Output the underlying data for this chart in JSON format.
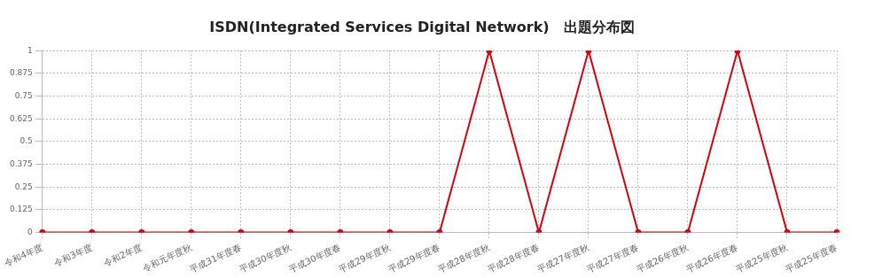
{
  "chart_data": {
    "type": "line",
    "title": "ISDN(Integrated Services Digital Network)　出題分布図",
    "categories": [
      "令和4年度",
      "令和3年度",
      "令和2年度",
      "令和元年度秋",
      "平成31年度春",
      "平成30年度秋",
      "平成30年度春",
      "平成29年度秋",
      "平成29年度春",
      "平成28年度秋",
      "平成28年度春",
      "平成27年度秋",
      "平成27年度春",
      "平成26年度秋",
      "平成26年度春",
      "平成25年度秋",
      "平成25年度春"
    ],
    "series": [
      {
        "color": "#d7000f",
        "values": [
          0,
          0,
          0,
          0,
          0,
          0,
          0,
          0,
          0,
          1,
          0,
          1,
          0,
          0,
          1,
          0,
          0
        ]
      }
    ],
    "ylim": [
      0,
      1
    ],
    "yticks": [
      0,
      0.125,
      0.25,
      0.375,
      0.5,
      0.625,
      0.75,
      0.875,
      1
    ],
    "grid": true,
    "legend": false,
    "marker": "circle",
    "line_style": "solid"
  }
}
